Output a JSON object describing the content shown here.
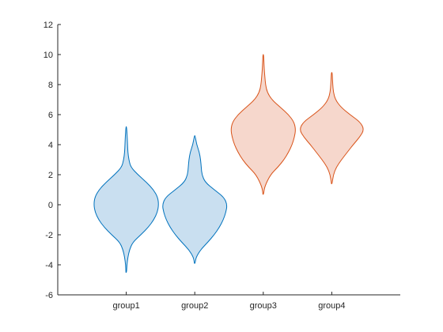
{
  "colors": {
    "background": "#ffffff",
    "axis": "#262626",
    "blue_line": "#0072BD",
    "blue_fill": "#c9dff0",
    "orange_line": "#D95319",
    "orange_fill": "#f6d7cc"
  },
  "chart_data": {
    "type": "violin",
    "title": "",
    "xlabel": "",
    "ylabel": "",
    "categories": [
      "group1",
      "group2",
      "group3",
      "group4"
    ],
    "ylim": [
      -6,
      12
    ],
    "yticks": [
      -6,
      -4,
      -2,
      0,
      2,
      4,
      6,
      8,
      10,
      12
    ],
    "grid": false,
    "legend": "none",
    "series": [
      {
        "category": "group1",
        "color": "blue",
        "min": -4.5,
        "max": 5.2,
        "density": [
          [
            -4.5,
            0.01
          ],
          [
            -4.0,
            0.02
          ],
          [
            -3.5,
            0.05
          ],
          [
            -3.0,
            0.1
          ],
          [
            -2.5,
            0.2
          ],
          [
            -2.0,
            0.45
          ],
          [
            -1.5,
            0.68
          ],
          [
            -1.0,
            0.85
          ],
          [
            -0.5,
            0.96
          ],
          [
            0.0,
            1.0
          ],
          [
            0.5,
            0.97
          ],
          [
            1.0,
            0.84
          ],
          [
            1.5,
            0.62
          ],
          [
            2.0,
            0.36
          ],
          [
            2.5,
            0.14
          ],
          [
            3.0,
            0.08
          ],
          [
            3.5,
            0.05
          ],
          [
            4.0,
            0.04
          ],
          [
            4.5,
            0.03
          ],
          [
            5.2,
            0.01
          ]
        ]
      },
      {
        "category": "group2",
        "color": "blue",
        "min": -3.9,
        "max": 4.6,
        "density": [
          [
            -3.9,
            0.01
          ],
          [
            -3.5,
            0.04
          ],
          [
            -3.0,
            0.18
          ],
          [
            -2.5,
            0.4
          ],
          [
            -2.0,
            0.6
          ],
          [
            -1.5,
            0.76
          ],
          [
            -1.0,
            0.88
          ],
          [
            -0.5,
            0.96
          ],
          [
            0.0,
            1.0
          ],
          [
            0.5,
            0.9
          ],
          [
            1.0,
            0.6
          ],
          [
            1.5,
            0.32
          ],
          [
            2.0,
            0.22
          ],
          [
            2.5,
            0.2
          ],
          [
            3.0,
            0.18
          ],
          [
            3.5,
            0.14
          ],
          [
            4.0,
            0.06
          ],
          [
            4.6,
            0.01
          ]
        ]
      },
      {
        "category": "group3",
        "color": "orange",
        "min": 0.7,
        "max": 10.0,
        "density": [
          [
            0.7,
            0.01
          ],
          [
            1.2,
            0.04
          ],
          [
            2.0,
            0.22
          ],
          [
            2.5,
            0.45
          ],
          [
            3.0,
            0.64
          ],
          [
            3.5,
            0.78
          ],
          [
            4.0,
            0.89
          ],
          [
            4.5,
            0.96
          ],
          [
            5.0,
            1.0
          ],
          [
            5.5,
            0.95
          ],
          [
            6.0,
            0.78
          ],
          [
            6.5,
            0.52
          ],
          [
            7.0,
            0.26
          ],
          [
            7.5,
            0.12
          ],
          [
            8.0,
            0.07
          ],
          [
            8.5,
            0.05
          ],
          [
            9.0,
            0.03
          ],
          [
            9.5,
            0.02
          ],
          [
            10.0,
            0.01
          ]
        ]
      },
      {
        "category": "group4",
        "color": "orange",
        "min": 1.4,
        "max": 8.8,
        "density": [
          [
            1.4,
            0.01
          ],
          [
            2.0,
            0.05
          ],
          [
            2.5,
            0.14
          ],
          [
            3.0,
            0.3
          ],
          [
            3.5,
            0.48
          ],
          [
            4.0,
            0.66
          ],
          [
            4.5,
            0.86
          ],
          [
            5.0,
            1.0
          ],
          [
            5.5,
            0.88
          ],
          [
            6.0,
            0.56
          ],
          [
            6.5,
            0.28
          ],
          [
            7.0,
            0.11
          ],
          [
            7.5,
            0.05
          ],
          [
            8.0,
            0.03
          ],
          [
            8.5,
            0.02
          ],
          [
            8.8,
            0.01
          ]
        ]
      }
    ]
  }
}
